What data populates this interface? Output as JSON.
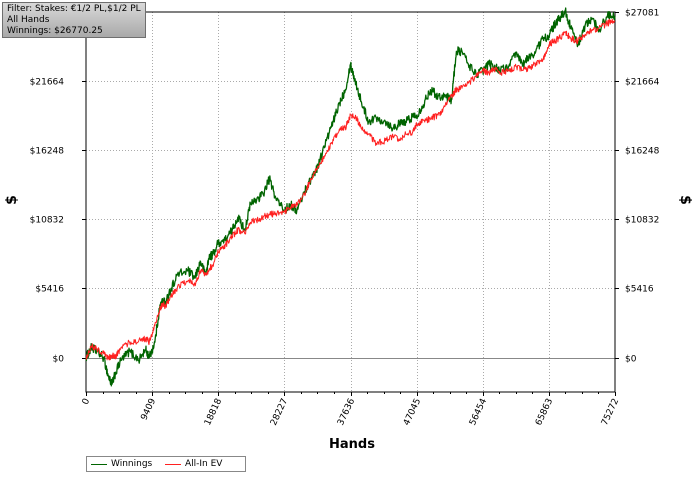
{
  "filter_box": {
    "line1": "Filter: Stakes: €1/2 PL,$1/2 PL",
    "line2": "All Hands",
    "line3": "Winnings: $26770.25"
  },
  "chart_data": {
    "type": "line",
    "title": "",
    "xlabel": "Hands",
    "ylabel": "$",
    "xlim": [
      0,
      75272
    ],
    "ylim": [
      -2700,
      27081
    ],
    "grid": true,
    "legend_position": "bottom-left",
    "x_ticks": [
      0,
      9409,
      18818,
      28227,
      37636,
      47045,
      56454,
      65863,
      75272
    ],
    "x_tick_labels": [
      "0",
      "9409",
      "18818",
      "28227",
      "37636",
      "47045",
      "56454",
      "65863",
      "75272"
    ],
    "y_ticks": [
      0,
      5416,
      10832,
      16248,
      21664,
      27081
    ],
    "y_tick_labels": [
      "$0",
      "$5416",
      "$10832",
      "$16248",
      "$21664",
      "$27081"
    ],
    "series": [
      {
        "name": "Winnings",
        "color": "#006400",
        "x": [
          0,
          800,
          1500,
          2500,
          3200,
          3700,
          4200,
          5000,
          6200,
          7500,
          8500,
          9000,
          9800,
          10500,
          11000,
          11300,
          11800,
          13000,
          14500,
          15500,
          16300,
          17000,
          17600,
          18000,
          18818,
          19800,
          20800,
          21600,
          22600,
          23400,
          24500,
          25200,
          26100,
          27000,
          28227,
          29100,
          30000,
          31100,
          32000,
          33000,
          34200,
          35200,
          36100,
          36900,
          37636,
          38400,
          39200,
          40200,
          41300,
          42600,
          43700,
          44600,
          45500,
          46500,
          47045,
          48000,
          49000,
          50100,
          51100,
          52000,
          52700,
          53500,
          54400,
          55500,
          56454,
          57300,
          58100,
          59000,
          60100,
          61200,
          62200,
          63000,
          64000,
          65000,
          65863,
          66600,
          67300,
          68200,
          69000,
          70000,
          71000,
          72000,
          73000,
          74200,
          75272
        ],
        "y": [
          0,
          800,
          500,
          0,
          -1500,
          -2100,
          -1200,
          -200,
          500,
          -200,
          600,
          0,
          1200,
          4000,
          4500,
          4200,
          5000,
          6500,
          6800,
          6200,
          7500,
          6500,
          8000,
          8000,
          9000,
          9200,
          10000,
          11000,
          10000,
          12000,
          12500,
          12800,
          14000,
          12500,
          11500,
          12000,
          11500,
          13000,
          14000,
          15000,
          17000,
          18500,
          20000,
          21000,
          23000,
          21500,
          20000,
          18500,
          18800,
          18500,
          18000,
          18300,
          18500,
          18900,
          19000,
          19800,
          21000,
          20500,
          20500,
          20200,
          24000,
          24000,
          23000,
          22200,
          22500,
          23000,
          22800,
          22500,
          22800,
          23800,
          23000,
          23500,
          24000,
          25000,
          25200,
          26000,
          26500,
          27200,
          25800,
          24500,
          26000,
          26500,
          25700,
          26800,
          26770
        ]
      },
      {
        "name": "All-In EV",
        "color": "#ff2020",
        "x": [
          0,
          800,
          1500,
          2500,
          3200,
          3700,
          4200,
          5000,
          6200,
          7500,
          8500,
          9000,
          9800,
          10500,
          11000,
          11300,
          11800,
          13000,
          14500,
          15500,
          16300,
          17000,
          17600,
          18000,
          18818,
          19800,
          20800,
          21600,
          22600,
          23400,
          24500,
          25200,
          26100,
          27000,
          28227,
          29100,
          30000,
          31100,
          32000,
          33000,
          34200,
          35200,
          36100,
          36900,
          37636,
          38400,
          39200,
          40200,
          41300,
          42600,
          43700,
          44600,
          45500,
          46500,
          47045,
          48000,
          49000,
          50100,
          51100,
          52000,
          52700,
          53500,
          54400,
          55500,
          56454,
          57300,
          58100,
          59000,
          60100,
          61200,
          62200,
          63000,
          64000,
          65000,
          65863,
          66600,
          67300,
          68200,
          69000,
          70000,
          71000,
          72000,
          73000,
          74200,
          75272
        ],
        "y": [
          0,
          900,
          700,
          300,
          -100,
          200,
          0,
          800,
          1200,
          1300,
          1500,
          1200,
          2500,
          3800,
          4200,
          4000,
          4500,
          5500,
          6000,
          5800,
          6800,
          6500,
          7000,
          7200,
          8300,
          8800,
          9500,
          10000,
          9700,
          10600,
          10800,
          11000,
          11200,
          11300,
          11400,
          11800,
          12000,
          12800,
          14000,
          15000,
          16000,
          17000,
          17800,
          18000,
          19000,
          18800,
          18000,
          17500,
          16800,
          17000,
          17300,
          17000,
          17500,
          17700,
          18200,
          18600,
          18700,
          19000,
          19700,
          20500,
          21000,
          21100,
          21500,
          22000,
          22500,
          22300,
          22600,
          22300,
          22500,
          22800,
          22500,
          22700,
          23000,
          23300,
          24500,
          24800,
          25000,
          25500,
          25000,
          24800,
          25300,
          25700,
          25800,
          26200,
          26400
        ]
      }
    ]
  },
  "legend": {
    "items": [
      {
        "label": "Winnings",
        "color": "#006400"
      },
      {
        "label": "All-In EV",
        "color": "#ff2020"
      }
    ]
  }
}
